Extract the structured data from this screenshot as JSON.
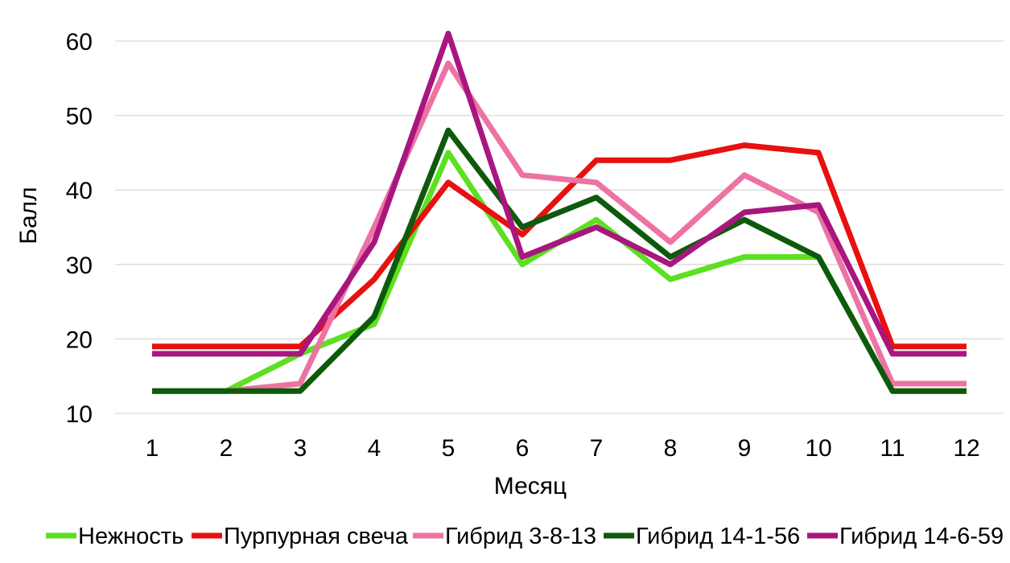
{
  "chart_data": {
    "type": "line",
    "title": "",
    "xlabel": "Месяц",
    "ylabel": "Балл",
    "categories": [
      "1",
      "2",
      "3",
      "4",
      "5",
      "6",
      "7",
      "8",
      "9",
      "10",
      "11",
      "12"
    ],
    "ylim": [
      10,
      60
    ],
    "yticks": [
      "10",
      "20",
      "30",
      "40",
      "50",
      "60"
    ],
    "grid": true,
    "legend_position": "bottom",
    "series": [
      {
        "name": "Нежность",
        "color": "#5ce01f",
        "values": [
          13,
          13,
          18,
          22,
          45,
          30,
          36,
          28,
          31,
          31,
          13,
          13
        ]
      },
      {
        "name": "Пурпурная свеча",
        "color": "#e81010",
        "values": [
          19,
          19,
          19,
          28,
          41,
          34,
          44,
          44,
          46,
          45,
          19,
          19
        ]
      },
      {
        "name": "Гибрид 3-8-13",
        "color": "#ec73a3",
        "values": [
          13,
          13,
          14,
          35,
          57,
          42,
          41,
          33,
          42,
          37,
          14,
          14
        ]
      },
      {
        "name": "Гибрид 14-1-56",
        "color": "#0e5a0c",
        "values": [
          13,
          13,
          13,
          23,
          48,
          35,
          39,
          31,
          36,
          31,
          13,
          13
        ]
      },
      {
        "name": "Гибрид 14-6-59",
        "color": "#a8167e",
        "values": [
          18,
          18,
          18,
          33,
          61,
          31,
          35,
          30,
          37,
          38,
          18,
          18
        ]
      }
    ]
  }
}
